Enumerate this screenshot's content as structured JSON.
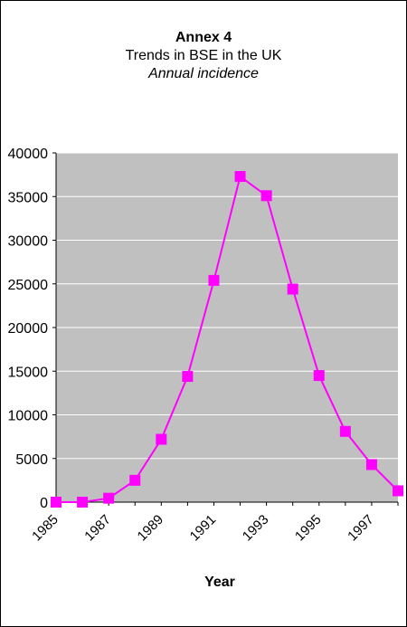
{
  "chart_data": {
    "type": "line",
    "title": "Annex 4",
    "subtitle": "Trends in BSE in the UK",
    "subtitle2": "Annual incidence",
    "xlabel": "Year",
    "ylabel": "",
    "ylim": [
      0,
      40000
    ],
    "yticks": [
      "0",
      "5000",
      "10000",
      "15000",
      "20000",
      "25000",
      "30000",
      "35000",
      "40000"
    ],
    "xtick_labels": [
      "1985",
      "1987",
      "1989",
      "1991",
      "1993",
      "1995",
      "1997"
    ],
    "x": [
      1985,
      1986,
      1987,
      1988,
      1989,
      1990,
      1991,
      1992,
      1993,
      1994,
      1995,
      1996,
      1997,
      1998
    ],
    "series": [
      {
        "values": [
          0,
          0,
          450,
          2500,
          7200,
          14400,
          25400,
          37300,
          35100,
          24400,
          14500,
          8100,
          4300,
          1300
        ]
      }
    ],
    "grid": true,
    "colors": {
      "series": "#ff00ff",
      "plot_bg": "#c0c0c0",
      "gridline": "#ffffff"
    }
  }
}
